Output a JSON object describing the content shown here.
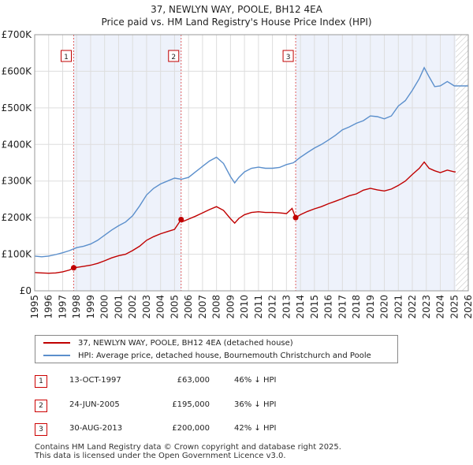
{
  "chart_data": {
    "type": "line",
    "title": "37, NEWLYN WAY, POOLE, BH12 4EA",
    "subtitle": "Price paid vs. HM Land Registry's House Price Index (HPI)",
    "xlabel": "",
    "ylabel": "",
    "xlim": [
      1995,
      2026
    ],
    "ylim": [
      0,
      700000
    ],
    "x_ticks": [
      "1995",
      "1996",
      "1997",
      "1998",
      "1999",
      "2000",
      "2001",
      "2002",
      "2003",
      "2004",
      "2005",
      "2006",
      "2007",
      "2008",
      "2009",
      "2010",
      "2011",
      "2012",
      "2013",
      "2014",
      "2015",
      "2016",
      "2017",
      "2018",
      "2019",
      "2020",
      "2021",
      "2022",
      "2023",
      "2024",
      "2025",
      "2026"
    ],
    "y_ticks": [
      {
        "value": 0,
        "label": "£0"
      },
      {
        "value": 100000,
        "label": "£100K"
      },
      {
        "value": 200000,
        "label": "£200K"
      },
      {
        "value": 300000,
        "label": "£300K"
      },
      {
        "value": 400000,
        "label": "£400K"
      },
      {
        "value": 500000,
        "label": "£500K"
      },
      {
        "value": 600000,
        "label": "£600K"
      },
      {
        "value": 700000,
        "label": "£700K"
      }
    ],
    "grid": true,
    "forecast_from": 2025.1,
    "series": [
      {
        "name": "37, NEWLYN WAY, POOLE, BH12 4EA (detached house)",
        "color": "#c00000",
        "x": [
          1995.0,
          1995.5,
          1996.0,
          1996.5,
          1997.0,
          1997.5,
          1997.79,
          1998.0,
          1998.5,
          1999.0,
          1999.5,
          2000.0,
          2000.5,
          2001.0,
          2001.5,
          2002.0,
          2002.5,
          2003.0,
          2003.5,
          2004.0,
          2004.5,
          2005.0,
          2005.47,
          2005.5,
          2006.0,
          2006.5,
          2007.0,
          2007.5,
          2008.0,
          2008.5,
          2009.0,
          2009.3,
          2009.6,
          2010.0,
          2010.5,
          2011.0,
          2011.5,
          2012.0,
          2012.5,
          2013.0,
          2013.4,
          2013.66,
          2014.0,
          2014.5,
          2015.0,
          2015.5,
          2016.0,
          2016.5,
          2017.0,
          2017.5,
          2018.0,
          2018.5,
          2019.0,
          2019.5,
          2020.0,
          2020.5,
          2021.0,
          2021.5,
          2022.0,
          2022.5,
          2022.85,
          2023.2,
          2023.6,
          2024.0,
          2024.5,
          2025.0,
          2025.1
        ],
        "y": [
          50000,
          49000,
          48000,
          49000,
          52000,
          57000,
          63000,
          64000,
          67000,
          70000,
          75000,
          82000,
          90000,
          96000,
          100000,
          110000,
          122000,
          138000,
          148000,
          156000,
          162000,
          168000,
          195000,
          188000,
          196000,
          204000,
          213000,
          222000,
          230000,
          220000,
          197000,
          185000,
          198000,
          208000,
          214000,
          216000,
          214000,
          214000,
          213000,
          211000,
          225000,
          200000,
          208000,
          217000,
          224000,
          230000,
          238000,
          245000,
          252000,
          260000,
          265000,
          275000,
          280000,
          276000,
          273000,
          278000,
          288000,
          300000,
          318000,
          335000,
          352000,
          335000,
          328000,
          323000,
          330000,
          325000,
          325000
        ]
      },
      {
        "name": "HPI: Average price, detached house, Bournemouth Christchurch and Poole",
        "color": "#5b8fcc",
        "x": [
          1995.0,
          1995.5,
          1996.0,
          1996.5,
          1997.0,
          1997.5,
          1998.0,
          1998.5,
          1999.0,
          1999.5,
          2000.0,
          2000.5,
          2001.0,
          2001.5,
          2002.0,
          2002.5,
          2003.0,
          2003.5,
          2004.0,
          2004.5,
          2005.0,
          2005.5,
          2006.0,
          2006.5,
          2007.0,
          2007.5,
          2008.0,
          2008.5,
          2009.0,
          2009.3,
          2009.6,
          2010.0,
          2010.5,
          2011.0,
          2011.5,
          2012.0,
          2012.5,
          2013.0,
          2013.5,
          2014.0,
          2014.5,
          2015.0,
          2015.5,
          2016.0,
          2016.5,
          2017.0,
          2017.5,
          2018.0,
          2018.5,
          2019.0,
          2019.5,
          2020.0,
          2020.5,
          2021.0,
          2021.5,
          2022.0,
          2022.5,
          2022.85,
          2023.2,
          2023.6,
          2024.0,
          2024.5,
          2025.0,
          2025.1,
          2025.5,
          2026.0
        ],
        "y": [
          95000,
          93000,
          95000,
          99000,
          104000,
          110000,
          118000,
          122000,
          128000,
          138000,
          152000,
          166000,
          178000,
          188000,
          205000,
          232000,
          262000,
          280000,
          292000,
          300000,
          308000,
          305000,
          310000,
          325000,
          340000,
          355000,
          365000,
          348000,
          312000,
          295000,
          310000,
          325000,
          335000,
          338000,
          335000,
          335000,
          337000,
          345000,
          350000,
          365000,
          378000,
          390000,
          400000,
          412000,
          425000,
          440000,
          448000,
          458000,
          465000,
          478000,
          476000,
          470000,
          478000,
          505000,
          520000,
          548000,
          580000,
          610000,
          585000,
          558000,
          560000,
          572000,
          560000,
          560000,
          560000,
          560000
        ]
      }
    ],
    "sales": [
      {
        "label": "1",
        "x": 1997.79,
        "y": 63000
      },
      {
        "label": "2",
        "x": 2005.47,
        "y": 195000
      },
      {
        "label": "3",
        "x": 2013.66,
        "y": 200000
      }
    ]
  },
  "legend": {
    "items": [
      {
        "label": "37, NEWLYN WAY, POOLE, BH12 4EA (detached house)",
        "color": "#c00000"
      },
      {
        "label": "HPI: Average price, detached house, Bournemouth Christchurch and Poole",
        "color": "#5b8fcc"
      }
    ]
  },
  "events": [
    {
      "num": "1",
      "date": "13-OCT-1997",
      "price": "£63,000",
      "hpi": "46% ↓ HPI"
    },
    {
      "num": "2",
      "date": "24-JUN-2005",
      "price": "£195,000",
      "hpi": "36% ↓ HPI"
    },
    {
      "num": "3",
      "date": "30-AUG-2013",
      "price": "£200,000",
      "hpi": "42% ↓ HPI"
    }
  ],
  "footer": {
    "line1": "Contains HM Land Registry data © Crown copyright and database right 2025.",
    "line2": "This data is licensed under the Open Government Licence v3.0."
  }
}
